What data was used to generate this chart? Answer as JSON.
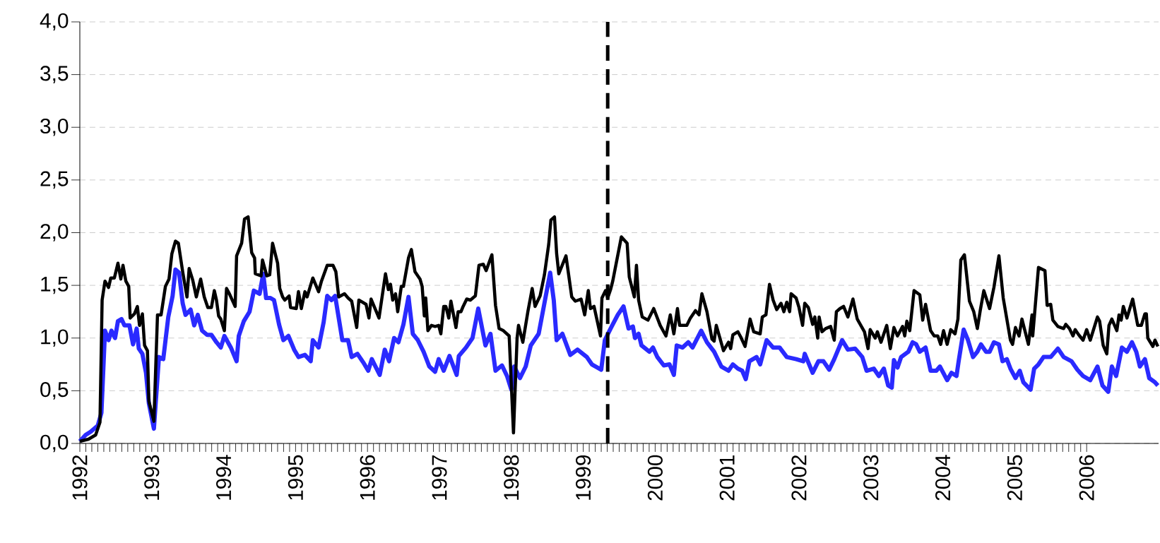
{
  "chart_data": {
    "type": "line",
    "xlim": [
      1992,
      2007
    ],
    "ylim": [
      0,
      4
    ],
    "xticks": [
      1992,
      1993,
      1994,
      1995,
      1996,
      1997,
      1998,
      1999,
      2000,
      2001,
      2002,
      2003,
      2004,
      2005,
      2006
    ],
    "yticks": [
      {
        "value": 0,
        "label": "0,0"
      },
      {
        "value": 0.5,
        "label": "0,5"
      },
      {
        "value": 1,
        "label": "1,0"
      },
      {
        "value": 1.5,
        "label": "1,5"
      },
      {
        "value": 2,
        "label": "2,0"
      },
      {
        "value": 2.5,
        "label": "2,5"
      },
      {
        "value": 3,
        "label": "3,0"
      },
      {
        "value": 3.5,
        "label": "3,5"
      },
      {
        "value": 4,
        "label": "4,0"
      }
    ],
    "grid": "y",
    "marker": "none",
    "line_style": "solid",
    "ref_lines": [
      {
        "axis": "x",
        "value": 1999.34,
        "color": "#000000",
        "line_style": "dashed"
      }
    ],
    "series": [
      {
        "color": "#2a2aff",
        "x": [
          1992.0,
          1992.08,
          1992.15,
          1992.25,
          1992.3,
          1992.35,
          1992.4,
          1992.44,
          1992.49,
          1992.53,
          1992.58,
          1992.62,
          1992.69,
          1992.74,
          1992.79,
          1992.82,
          1992.87,
          1992.92,
          1992.96,
          1993.03,
          1993.1,
          1993.16,
          1993.23,
          1993.29,
          1993.33,
          1993.38,
          1993.43,
          1993.47,
          1993.54,
          1993.59,
          1993.64,
          1993.7,
          1993.77,
          1993.83,
          1993.9,
          1993.96,
          1994.01,
          1994.1,
          1994.18,
          1994.21,
          1994.28,
          1994.36,
          1994.42,
          1994.5,
          1994.55,
          1994.59,
          1994.65,
          1994.7,
          1994.77,
          1994.83,
          1994.9,
          1994.98,
          1995.04,
          1995.13,
          1995.21,
          1995.24,
          1995.32,
          1995.39,
          1995.44,
          1995.5,
          1995.55,
          1995.65,
          1995.73,
          1995.78,
          1995.86,
          1995.94,
          1996.01,
          1996.06,
          1996.17,
          1996.24,
          1996.3,
          1996.37,
          1996.43,
          1996.5,
          1996.57,
          1996.63,
          1996.7,
          1996.78,
          1996.86,
          1996.94,
          1996.99,
          1997.06,
          1997.14,
          1997.24,
          1997.27,
          1997.37,
          1997.46,
          1997.54,
          1997.64,
          1997.71,
          1997.78,
          1997.87,
          1997.94,
          1998.0,
          1998.04,
          1998.12,
          1998.2,
          1998.27,
          1998.38,
          1998.46,
          1998.54,
          1998.59,
          1998.63,
          1998.71,
          1998.82,
          1998.92,
          1999.05,
          1999.12,
          1999.25,
          1999.3,
          1999.38,
          1999.48,
          1999.56,
          1999.63,
          1999.69,
          1999.72,
          1999.77,
          1999.81,
          1999.92,
          1999.97,
          2000.03,
          2000.12,
          2000.2,
          2000.26,
          2000.3,
          2000.38,
          2000.46,
          2000.52,
          2000.64,
          2000.72,
          2000.82,
          2000.92,
          2001.02,
          2001.08,
          2001.15,
          2001.21,
          2001.26,
          2001.31,
          2001.41,
          2001.46,
          2001.55,
          2001.64,
          2001.73,
          2001.83,
          2001.96,
          2002.06,
          2002.08,
          2002.19,
          2002.27,
          2002.34,
          2002.42,
          2002.49,
          2002.6,
          2002.68,
          2002.78,
          2002.88,
          2002.94,
          2003.04,
          2003.11,
          2003.18,
          2003.24,
          2003.29,
          2003.32,
          2003.37,
          2003.42,
          2003.52,
          2003.58,
          2003.63,
          2003.68,
          2003.76,
          2003.83,
          2003.91,
          2003.96,
          2004.06,
          2004.12,
          2004.19,
          2004.22,
          2004.29,
          2004.35,
          2004.42,
          2004.48,
          2004.53,
          2004.6,
          2004.65,
          2004.71,
          2004.78,
          2004.83,
          2004.89,
          2004.94,
          2005.01,
          2005.07,
          2005.12,
          2005.22,
          2005.27,
          2005.33,
          2005.4,
          2005.5,
          2005.6,
          2005.68,
          2005.79,
          2005.87,
          2005.95,
          2006.05,
          2006.15,
          2006.22,
          2006.3,
          2006.35,
          2006.41,
          2006.49,
          2006.56,
          2006.63,
          2006.69,
          2006.74,
          2006.81,
          2006.87,
          2006.95,
          2006.99
        ],
        "values": [
          0.02,
          0.08,
          0.11,
          0.17,
          0.29,
          1.07,
          0.98,
          1.07,
          1.0,
          1.16,
          1.18,
          1.12,
          1.12,
          0.94,
          1.09,
          0.9,
          0.85,
          0.67,
          0.38,
          0.14,
          0.82,
          0.8,
          1.2,
          1.4,
          1.65,
          1.62,
          1.33,
          1.22,
          1.27,
          1.12,
          1.22,
          1.07,
          1.03,
          1.03,
          0.96,
          0.91,
          1.02,
          0.91,
          0.78,
          1.02,
          1.16,
          1.25,
          1.45,
          1.42,
          1.61,
          1.38,
          1.38,
          1.36,
          1.13,
          0.98,
          1.02,
          0.89,
          0.82,
          0.84,
          0.78,
          0.98,
          0.91,
          1.15,
          1.4,
          1.36,
          1.4,
          0.98,
          0.98,
          0.82,
          0.85,
          0.77,
          0.69,
          0.8,
          0.65,
          0.89,
          0.78,
          1.0,
          0.96,
          1.13,
          1.39,
          1.04,
          0.98,
          0.87,
          0.73,
          0.68,
          0.8,
          0.69,
          0.83,
          0.65,
          0.83,
          0.91,
          1.0,
          1.28,
          0.93,
          1.04,
          0.69,
          0.74,
          0.64,
          0.51,
          0.73,
          0.62,
          0.73,
          0.93,
          1.04,
          1.33,
          1.62,
          1.36,
          0.98,
          1.04,
          0.84,
          0.89,
          0.82,
          0.75,
          0.7,
          0.98,
          1.09,
          1.22,
          1.3,
          1.09,
          1.11,
          1.0,
          1.04,
          0.93,
          0.87,
          0.91,
          0.82,
          0.74,
          0.75,
          0.65,
          0.93,
          0.91,
          0.96,
          0.91,
          1.07,
          0.96,
          0.87,
          0.73,
          0.69,
          0.75,
          0.71,
          0.69,
          0.61,
          0.78,
          0.82,
          0.75,
          0.98,
          0.91,
          0.91,
          0.82,
          0.8,
          0.78,
          0.85,
          0.67,
          0.78,
          0.78,
          0.7,
          0.8,
          0.98,
          0.89,
          0.9,
          0.82,
          0.69,
          0.71,
          0.64,
          0.71,
          0.55,
          0.53,
          0.79,
          0.72,
          0.82,
          0.87,
          0.96,
          0.94,
          0.87,
          0.91,
          0.69,
          0.69,
          0.73,
          0.6,
          0.67,
          0.64,
          0.78,
          1.08,
          0.98,
          0.82,
          0.87,
          0.94,
          0.87,
          0.87,
          0.96,
          0.94,
          0.78,
          0.8,
          0.71,
          0.62,
          0.69,
          0.58,
          0.51,
          0.71,
          0.75,
          0.82,
          0.82,
          0.9,
          0.82,
          0.78,
          0.7,
          0.64,
          0.6,
          0.73,
          0.55,
          0.49,
          0.73,
          0.64,
          0.91,
          0.87,
          0.96,
          0.87,
          0.73,
          0.8,
          0.62,
          0.58,
          0.55
        ]
      },
      {
        "color": "#000000",
        "x": [
          1992.0,
          1992.12,
          1992.22,
          1992.28,
          1992.31,
          1992.35,
          1992.4,
          1992.43,
          1992.48,
          1992.53,
          1992.57,
          1992.6,
          1992.64,
          1992.68,
          1992.7,
          1992.76,
          1992.8,
          1992.83,
          1992.87,
          1992.9,
          1992.94,
          1992.96,
          1993.03,
          1993.08,
          1993.13,
          1993.19,
          1993.24,
          1993.28,
          1993.33,
          1993.37,
          1993.43,
          1993.49,
          1993.52,
          1993.57,
          1993.62,
          1993.68,
          1993.73,
          1993.78,
          1993.83,
          1993.87,
          1993.9,
          1993.93,
          1993.96,
          1994.01,
          1994.04,
          1994.08,
          1994.16,
          1994.18,
          1994.25,
          1994.29,
          1994.34,
          1994.39,
          1994.43,
          1994.44,
          1994.52,
          1994.54,
          1994.6,
          1994.64,
          1994.68,
          1994.75,
          1994.78,
          1994.82,
          1994.85,
          1994.91,
          1994.93,
          1995.01,
          1995.04,
          1995.08,
          1995.13,
          1995.16,
          1995.24,
          1995.32,
          1995.36,
          1995.44,
          1995.52,
          1995.56,
          1995.6,
          1995.68,
          1995.73,
          1995.78,
          1995.85,
          1995.88,
          1995.98,
          1996.02,
          1996.05,
          1996.16,
          1996.25,
          1996.29,
          1996.32,
          1996.35,
          1996.39,
          1996.42,
          1996.47,
          1996.5,
          1996.57,
          1996.61,
          1996.66,
          1996.73,
          1996.76,
          1996.79,
          1996.81,
          1996.84,
          1996.89,
          1996.94,
          1996.99,
          1997.02,
          1997.06,
          1997.09,
          1997.13,
          1997.16,
          1997.23,
          1997.26,
          1997.3,
          1997.33,
          1997.38,
          1997.43,
          1997.5,
          1997.55,
          1997.61,
          1997.65,
          1997.73,
          1997.78,
          1997.83,
          1997.89,
          1997.97,
          1998.03,
          1998.08,
          1998.1,
          1998.16,
          1998.23,
          1998.29,
          1998.33,
          1998.4,
          1998.46,
          1998.52,
          1998.55,
          1998.6,
          1998.63,
          1998.66,
          1998.76,
          1998.84,
          1998.89,
          1998.97,
          1999.02,
          1999.07,
          1999.1,
          1999.15,
          1999.24,
          1999.26,
          1999.31,
          1999.34,
          1999.38,
          1999.41,
          1999.53,
          1999.61,
          1999.64,
          1999.71,
          1999.74,
          1999.77,
          1999.82,
          1999.9,
          1999.98,
          2000.07,
          2000.15,
          2000.21,
          2000.26,
          2000.31,
          2000.34,
          2000.44,
          2000.49,
          2000.56,
          2000.61,
          2000.65,
          2000.72,
          2000.79,
          2000.82,
          2000.85,
          2000.95,
          2001.02,
          2001.05,
          2001.08,
          2001.15,
          2001.19,
          2001.25,
          2001.32,
          2001.37,
          2001.46,
          2001.49,
          2001.54,
          2001.59,
          2001.64,
          2001.69,
          2001.75,
          2001.79,
          2001.83,
          2001.87,
          2001.89,
          2001.96,
          2002.0,
          2002.05,
          2002.08,
          2002.13,
          2002.19,
          2002.22,
          2002.26,
          2002.28,
          2002.32,
          2002.37,
          2002.44,
          2002.49,
          2002.52,
          2002.57,
          2002.62,
          2002.68,
          2002.75,
          2002.81,
          2002.91,
          2002.96,
          2002.99,
          2003.06,
          2003.09,
          2003.14,
          2003.22,
          2003.27,
          2003.32,
          2003.37,
          2003.44,
          2003.47,
          2003.5,
          2003.54,
          2003.6,
          2003.68,
          2003.72,
          2003.76,
          2003.83,
          2003.88,
          2003.93,
          2003.97,
          2004.01,
          2004.06,
          2004.11,
          2004.17,
          2004.21,
          2004.25,
          2004.3,
          2004.37,
          2004.43,
          2004.48,
          2004.52,
          2004.57,
          2004.65,
          2004.71,
          2004.78,
          2004.84,
          2004.94,
          2004.97,
          2005.01,
          2005.06,
          2005.1,
          2005.19,
          2005.24,
          2005.25,
          2005.33,
          2005.42,
          2005.45,
          2005.5,
          2005.53,
          2005.6,
          2005.68,
          2005.71,
          2005.76,
          2005.81,
          2005.84,
          2005.89,
          2005.95,
          2006.0,
          2006.05,
          2006.15,
          2006.18,
          2006.23,
          2006.28,
          2006.31,
          2006.35,
          2006.42,
          2006.45,
          2006.48,
          2006.51,
          2006.56,
          2006.64,
          2006.71,
          2006.76,
          2006.81,
          2006.83,
          2006.85,
          2006.92,
          2006.95,
          2006.99
        ],
        "values": [
          0.02,
          0.04,
          0.08,
          0.2,
          1.36,
          1.54,
          1.48,
          1.57,
          1.57,
          1.71,
          1.56,
          1.69,
          1.54,
          1.49,
          1.19,
          1.23,
          1.3,
          1.12,
          1.23,
          0.93,
          0.88,
          0.4,
          0.21,
          1.22,
          1.22,
          1.49,
          1.56,
          1.8,
          1.92,
          1.9,
          1.63,
          1.39,
          1.66,
          1.55,
          1.39,
          1.56,
          1.39,
          1.29,
          1.29,
          1.45,
          1.36,
          1.21,
          1.18,
          1.07,
          1.47,
          1.42,
          1.3,
          1.78,
          1.9,
          2.13,
          2.15,
          1.81,
          1.76,
          1.61,
          1.59,
          1.74,
          1.59,
          1.6,
          1.9,
          1.71,
          1.47,
          1.39,
          1.36,
          1.4,
          1.29,
          1.28,
          1.44,
          1.28,
          1.44,
          1.39,
          1.57,
          1.44,
          1.54,
          1.69,
          1.69,
          1.63,
          1.39,
          1.42,
          1.38,
          1.35,
          1.1,
          1.36,
          1.32,
          1.19,
          1.37,
          1.19,
          1.61,
          1.46,
          1.51,
          1.36,
          1.42,
          1.25,
          1.49,
          1.49,
          1.76,
          1.84,
          1.63,
          1.56,
          1.49,
          1.21,
          1.38,
          1.07,
          1.12,
          1.11,
          1.12,
          1.04,
          1.3,
          1.3,
          1.19,
          1.35,
          1.1,
          1.25,
          1.25,
          1.3,
          1.37,
          1.36,
          1.4,
          1.69,
          1.7,
          1.64,
          1.79,
          1.31,
          1.09,
          1.07,
          1.02,
          0.1,
          1.0,
          1.12,
          0.96,
          1.25,
          1.47,
          1.3,
          1.4,
          1.6,
          1.89,
          2.12,
          2.15,
          1.8,
          1.61,
          1.78,
          1.39,
          1.35,
          1.37,
          1.22,
          1.45,
          1.28,
          1.3,
          1.02,
          1.38,
          1.45,
          1.38,
          1.46,
          1.54,
          1.96,
          1.9,
          1.58,
          1.39,
          1.69,
          1.36,
          1.2,
          1.17,
          1.28,
          1.12,
          1.02,
          1.22,
          1.04,
          1.28,
          1.12,
          1.12,
          1.19,
          1.26,
          1.22,
          1.42,
          1.25,
          0.99,
          0.97,
          1.12,
          0.88,
          0.96,
          0.9,
          1.03,
          1.06,
          1.01,
          0.92,
          1.18,
          1.06,
          1.04,
          1.2,
          1.22,
          1.51,
          1.36,
          1.27,
          1.33,
          1.25,
          1.34,
          1.25,
          1.42,
          1.38,
          1.29,
          1.12,
          1.33,
          1.29,
          1.13,
          1.2,
          1.0,
          1.2,
          1.06,
          1.09,
          1.11,
          0.98,
          1.25,
          1.28,
          1.3,
          1.2,
          1.37,
          1.18,
          1.06,
          0.9,
          1.08,
          1.0,
          1.06,
          0.96,
          1.12,
          0.9,
          1.1,
          1.02,
          1.11,
          1.02,
          1.16,
          1.07,
          1.45,
          1.41,
          1.17,
          1.32,
          1.07,
          1.02,
          1.02,
          0.94,
          1.07,
          0.94,
          1.08,
          1.04,
          1.18,
          1.74,
          1.79,
          1.35,
          1.25,
          1.09,
          1.26,
          1.45,
          1.28,
          1.48,
          1.78,
          1.38,
          0.98,
          0.94,
          1.1,
          1.02,
          1.18,
          0.94,
          1.22,
          1.02,
          1.67,
          1.64,
          1.31,
          1.32,
          1.17,
          1.11,
          1.09,
          1.13,
          1.09,
          1.02,
          1.08,
          1.03,
          0.98,
          1.08,
          0.98,
          1.2,
          1.16,
          0.93,
          0.85,
          1.12,
          1.18,
          1.07,
          1.22,
          1.17,
          1.3,
          1.19,
          1.37,
          1.12,
          1.12,
          1.23,
          1.23,
          1.0,
          0.92,
          0.98,
          0.92
        ]
      }
    ]
  }
}
